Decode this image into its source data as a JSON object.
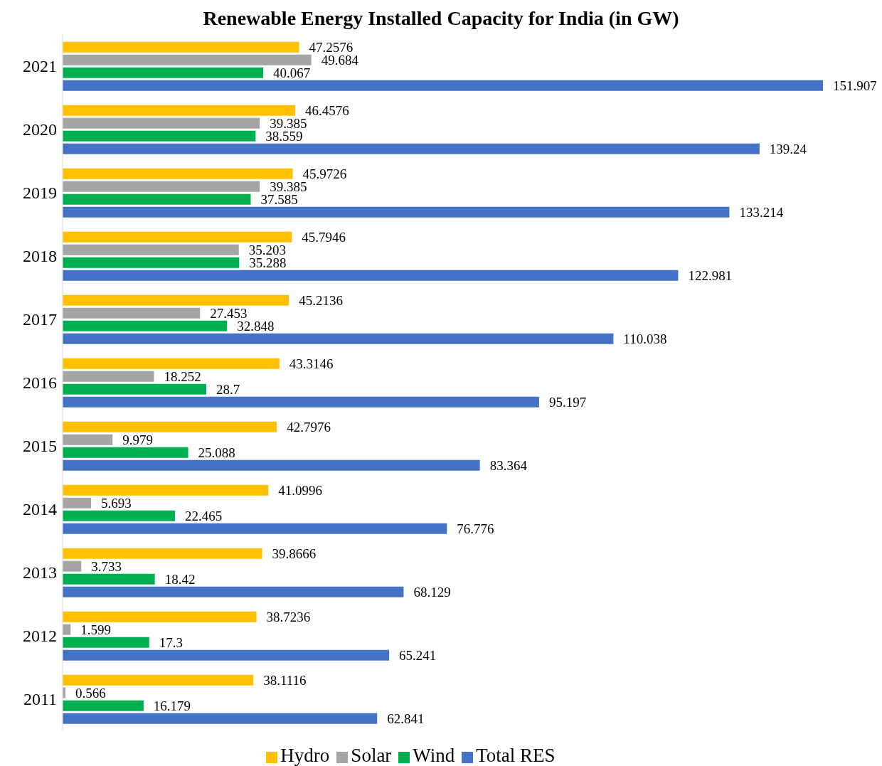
{
  "chart_data": {
    "type": "bar",
    "orientation": "horizontal",
    "title": "Renewable Energy Installed Capacity for India (in GW)",
    "categories": [
      "2021",
      "2020",
      "2019",
      "2018",
      "2017",
      "2016",
      "2015",
      "2014",
      "2013",
      "2012",
      "2011"
    ],
    "series": [
      {
        "name": "Hydro",
        "color": "#ffc000",
        "values": [
          47.2576,
          46.4576,
          45.9726,
          45.7946,
          45.2136,
          43.3146,
          42.7976,
          41.0996,
          39.8666,
          38.7236,
          38.1116
        ]
      },
      {
        "name": "Solar",
        "color": "#a5a5a5",
        "values": [
          49.684,
          39.385,
          39.385,
          35.203,
          27.453,
          18.252,
          9.979,
          5.693,
          3.733,
          1.599,
          0.566
        ]
      },
      {
        "name": "Wind",
        "color": "#00b050",
        "values": [
          40.067,
          38.559,
          37.585,
          35.288,
          32.848,
          28.7,
          25.088,
          22.465,
          18.42,
          17.3,
          16.179
        ]
      },
      {
        "name": "Total RES",
        "color": "#4472c4",
        "values": [
          151.907,
          139.24,
          133.214,
          122.981,
          110.038,
          95.197,
          83.364,
          76.776,
          68.129,
          65.241,
          62.841
        ]
      }
    ],
    "data_labels": true,
    "legend": "bottom",
    "grid": false
  }
}
